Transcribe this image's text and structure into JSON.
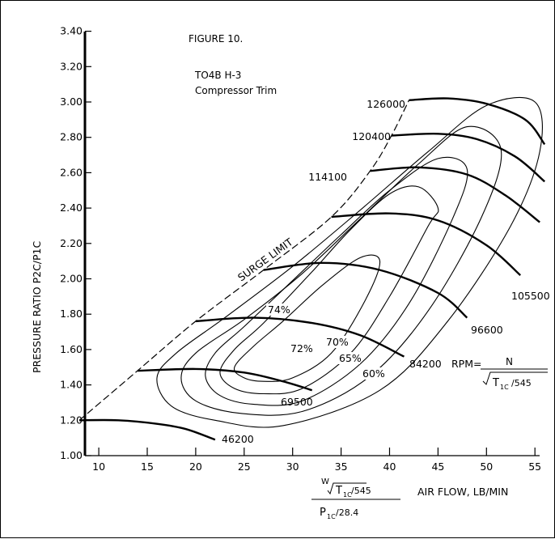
{
  "chart_data": {
    "type": "line",
    "title": "FIGURE 10.",
    "subtitle": [
      "TO4B H-3",
      "Compressor Trim"
    ],
    "ylabel": "PRESSURE RATIO P2C/P1C",
    "xlabel": "AIR FLOW, LB/MIN",
    "xlabel_formula": {
      "numerator_prefix": "W",
      "numerator_radicand": "T",
      "numerator_sub": "1C",
      "numerator_suffix": "/545",
      "denominator": "P",
      "denominator_sub": "1C",
      "denominator_suffix": "/28.4"
    },
    "xlim": [
      8,
      56
    ],
    "ylim": [
      1.0,
      3.4
    ],
    "x_ticks": [
      10,
      15,
      20,
      25,
      30,
      35,
      40,
      45,
      50,
      55
    ],
    "y_ticks": [
      "1.00",
      "1.20",
      "1.40",
      "1.60",
      "1.80",
      "2.00",
      "2.20",
      "2.40",
      "2.60",
      "2.80",
      "3.00",
      "3.20",
      "3.40"
    ],
    "grid": false,
    "surge_limit": {
      "label": "SURGE LIMIT",
      "points": [
        [
          8,
          1.2
        ],
        [
          14,
          1.48
        ],
        [
          20,
          1.76
        ],
        [
          27,
          2.05
        ],
        [
          34,
          2.35
        ],
        [
          38,
          2.61
        ],
        [
          40.2,
          2.81
        ],
        [
          42,
          3.01
        ]
      ]
    },
    "speed_lines": [
      {
        "label": "46200",
        "points": [
          [
            8,
            1.2
          ],
          [
            12,
            1.2
          ],
          [
            16,
            1.18
          ],
          [
            19,
            1.15
          ],
          [
            22,
            1.09
          ]
        ]
      },
      {
        "label": "69500",
        "points": [
          [
            14,
            1.48
          ],
          [
            20,
            1.49
          ],
          [
            25,
            1.47
          ],
          [
            29,
            1.42
          ],
          [
            32,
            1.37
          ]
        ]
      },
      {
        "label": "84200",
        "points": [
          [
            20,
            1.76
          ],
          [
            26,
            1.78
          ],
          [
            32,
            1.75
          ],
          [
            37,
            1.68
          ],
          [
            41.5,
            1.56
          ]
        ]
      },
      {
        "label": "96600",
        "points": [
          [
            27,
            2.05
          ],
          [
            33,
            2.09
          ],
          [
            39,
            2.05
          ],
          [
            45,
            1.92
          ],
          [
            48,
            1.78
          ]
        ]
      },
      {
        "label": "105500",
        "points": [
          [
            34,
            2.35
          ],
          [
            40,
            2.37
          ],
          [
            45,
            2.33
          ],
          [
            50,
            2.19
          ],
          [
            53.5,
            2.02
          ]
        ]
      },
      {
        "label": "114100",
        "points": [
          [
            38,
            2.61
          ],
          [
            43,
            2.63
          ],
          [
            48,
            2.59
          ],
          [
            52,
            2.47
          ],
          [
            55.5,
            2.32
          ]
        ]
      },
      {
        "label": "120400",
        "points": [
          [
            40.2,
            2.81
          ],
          [
            45,
            2.82
          ],
          [
            49,
            2.79
          ],
          [
            53,
            2.69
          ],
          [
            56,
            2.55
          ]
        ]
      },
      {
        "label": "126000",
        "points": [
          [
            42,
            3.01
          ],
          [
            46,
            3.02
          ],
          [
            50,
            2.99
          ],
          [
            54,
            2.9
          ],
          [
            56,
            2.76
          ]
        ]
      }
    ],
    "rpm_formula": {
      "prefix": "RPM=",
      "numerator": "N",
      "radicand": "T",
      "sub": "1C",
      "suffix": "/545"
    },
    "efficiency_islands": [
      {
        "label": "74%",
        "points": [
          [
            24,
            1.5
          ],
          [
            25,
            1.44
          ],
          [
            27,
            1.42
          ],
          [
            30,
            1.44
          ],
          [
            34,
            1.58
          ],
          [
            37.5,
            1.88
          ],
          [
            39,
            2.1
          ],
          [
            37,
            2.12
          ],
          [
            33,
            1.96
          ],
          [
            29,
            1.76
          ],
          [
            26,
            1.62
          ]
        ]
      },
      {
        "label": "72%",
        "points": [
          [
            22.5,
            1.47
          ],
          [
            24,
            1.38
          ],
          [
            27,
            1.35
          ],
          [
            31,
            1.38
          ],
          [
            36,
            1.58
          ],
          [
            40,
            1.9
          ],
          [
            44,
            2.3
          ],
          [
            45,
            2.4
          ],
          [
            43,
            2.52
          ],
          [
            40,
            2.48
          ],
          [
            36,
            2.28
          ],
          [
            32,
            2.04
          ],
          [
            27,
            1.75
          ],
          [
            24,
            1.6
          ]
        ]
      },
      {
        "label": "70%",
        "points": [
          [
            21,
            1.45
          ],
          [
            22.5,
            1.34
          ],
          [
            26,
            1.29
          ],
          [
            31,
            1.31
          ],
          [
            37,
            1.52
          ],
          [
            42,
            1.86
          ],
          [
            46.5,
            2.34
          ],
          [
            48,
            2.62
          ],
          [
            45,
            2.68
          ],
          [
            40,
            2.5
          ],
          [
            35,
            2.25
          ],
          [
            30,
            1.99
          ],
          [
            25,
            1.73
          ],
          [
            22,
            1.58
          ]
        ]
      },
      {
        "label": "65%",
        "points": [
          [
            18.5,
            1.44
          ],
          [
            20,
            1.31
          ],
          [
            24.5,
            1.24
          ],
          [
            31,
            1.25
          ],
          [
            38,
            1.45
          ],
          [
            44,
            1.82
          ],
          [
            49.5,
            2.35
          ],
          [
            51.5,
            2.73
          ],
          [
            48,
            2.86
          ],
          [
            43,
            2.65
          ],
          [
            37,
            2.34
          ],
          [
            31,
            2.03
          ],
          [
            25,
            1.77
          ],
          [
            20,
            1.58
          ]
        ]
      },
      {
        "label": "60%",
        "points": [
          [
            16,
            1.44
          ],
          [
            17.5,
            1.28
          ],
          [
            22,
            1.2
          ],
          [
            29,
            1.17
          ],
          [
            39,
            1.37
          ],
          [
            46,
            1.76
          ],
          [
            52.5,
            2.3
          ],
          [
            55.5,
            2.72
          ],
          [
            55,
            3.0
          ],
          [
            50,
            2.98
          ],
          [
            44,
            2.72
          ],
          [
            37,
            2.39
          ],
          [
            30,
            2.07
          ],
          [
            23,
            1.78
          ],
          [
            18,
            1.58
          ]
        ]
      }
    ]
  }
}
